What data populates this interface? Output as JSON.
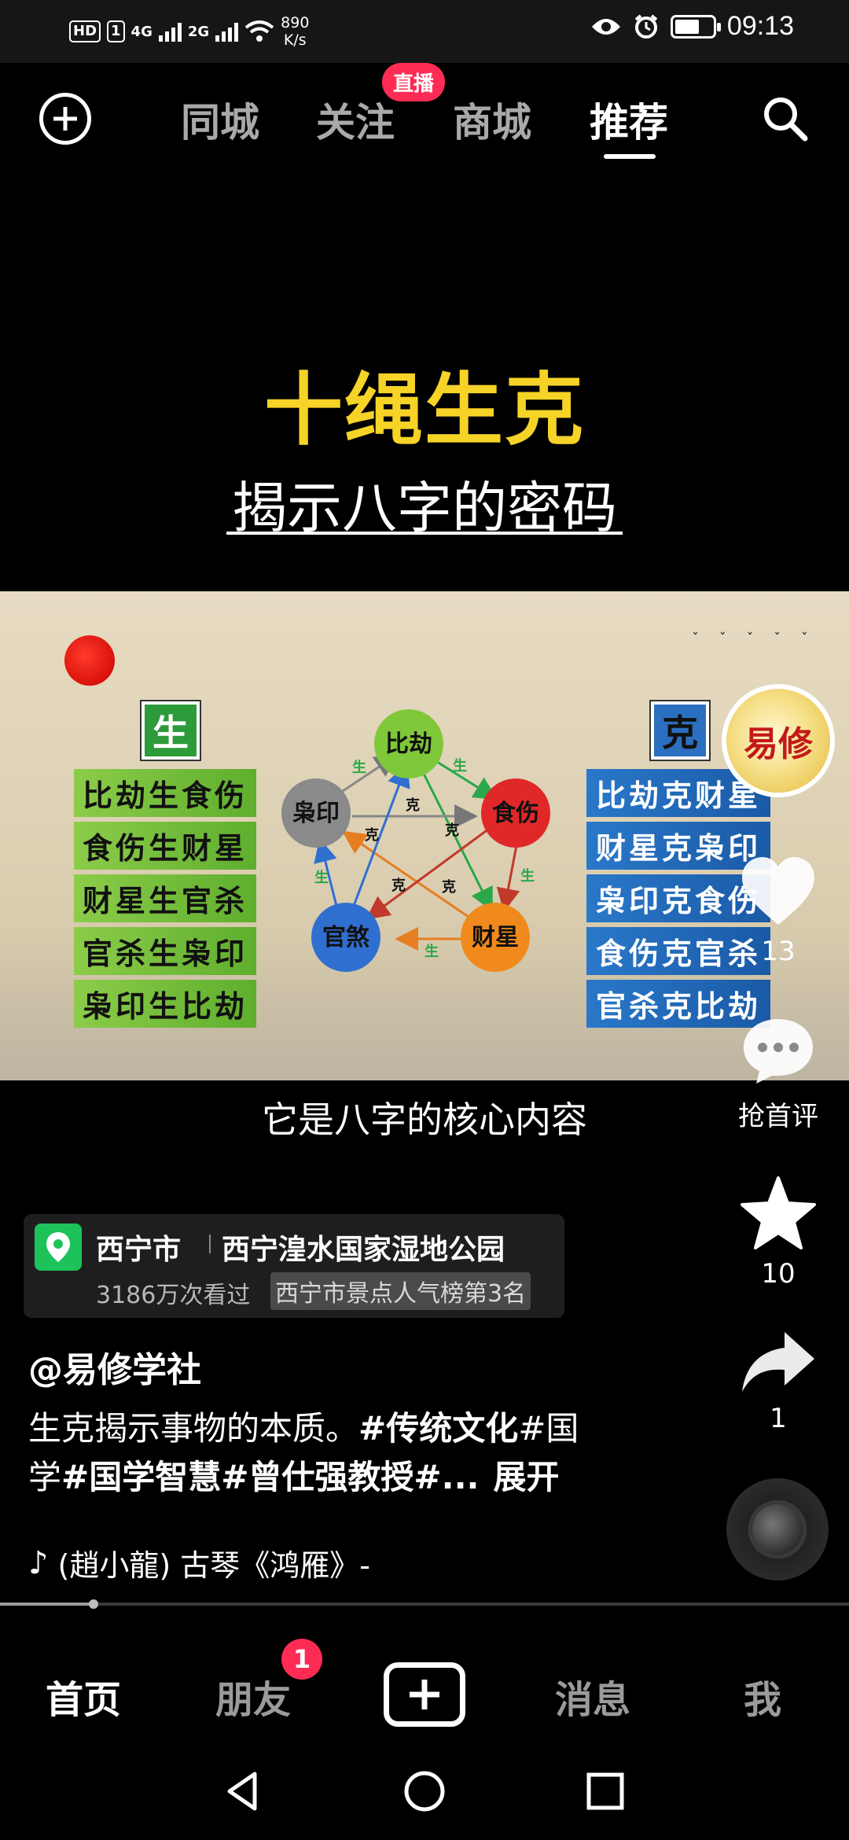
{
  "status_bar": {
    "hd_label": "HD",
    "sim_label": "1",
    "net1": "4G",
    "net2": "2G",
    "speed_value": "890",
    "speed_unit": "K/s",
    "time": "09:13"
  },
  "top_nav": {
    "tabs": [
      {
        "label": "同城"
      },
      {
        "label": "关注"
      },
      {
        "label": "商城"
      },
      {
        "label": "推荐"
      }
    ],
    "active_tab": "推荐",
    "live_badge": "直播"
  },
  "video": {
    "title": "十绳生克",
    "subtitle": "揭示八字的密码",
    "caption": "它是八字的核心内容",
    "sheng_tag": "生",
    "ke_tag": "克",
    "sheng_rules": [
      "比劫生食伤",
      "食伤生财星",
      "财星生官杀",
      "官杀生枭印",
      "枭印生比劫"
    ],
    "ke_rules": [
      "比劫克财星",
      "财星克枭印",
      "枭印克食伤",
      "食伤克官杀",
      "官杀克比劫"
    ],
    "nodes": {
      "bijie": "比劫",
      "shishang": "食伤",
      "caixing": "财星",
      "guansha": "官煞",
      "xiaoyin": "枭印"
    },
    "edge_label_sheng": "生",
    "edge_label_ke": "克",
    "colors": {
      "bijie": "#7ec83a",
      "shishang": "#e02828",
      "caixing": "#f08a1c",
      "guansha": "#2f6fcf",
      "xiaoyin": "#8a8a8a"
    }
  },
  "actions": {
    "avatar_text": "易修",
    "like_count": "13",
    "comment_label": "抢首评",
    "favorite_count": "10",
    "share_count": "1"
  },
  "location": {
    "city": "西宁市",
    "place": "西宁湟水国家湿地公园",
    "views": "3186万次看过",
    "rank": "西宁市景点人气榜第3名"
  },
  "post": {
    "author": "@易修学社",
    "desc_plain": "生克揭示事物的本质。",
    "tag1": "#传统文化",
    "tag2_a": "#国",
    "tag2_b": "学",
    "tag3": "#国学智慧",
    "tag4": "#曾仕强教授",
    "tag5": "#...",
    "expand": "展开",
    "music": "(趙小龍)   古琴《鸿雁》-"
  },
  "progress": {
    "fraction": 0.11
  },
  "bottom_nav": {
    "home": "首页",
    "friends": "朋友",
    "friends_badge": "1",
    "messages": "消息",
    "me": "我"
  }
}
